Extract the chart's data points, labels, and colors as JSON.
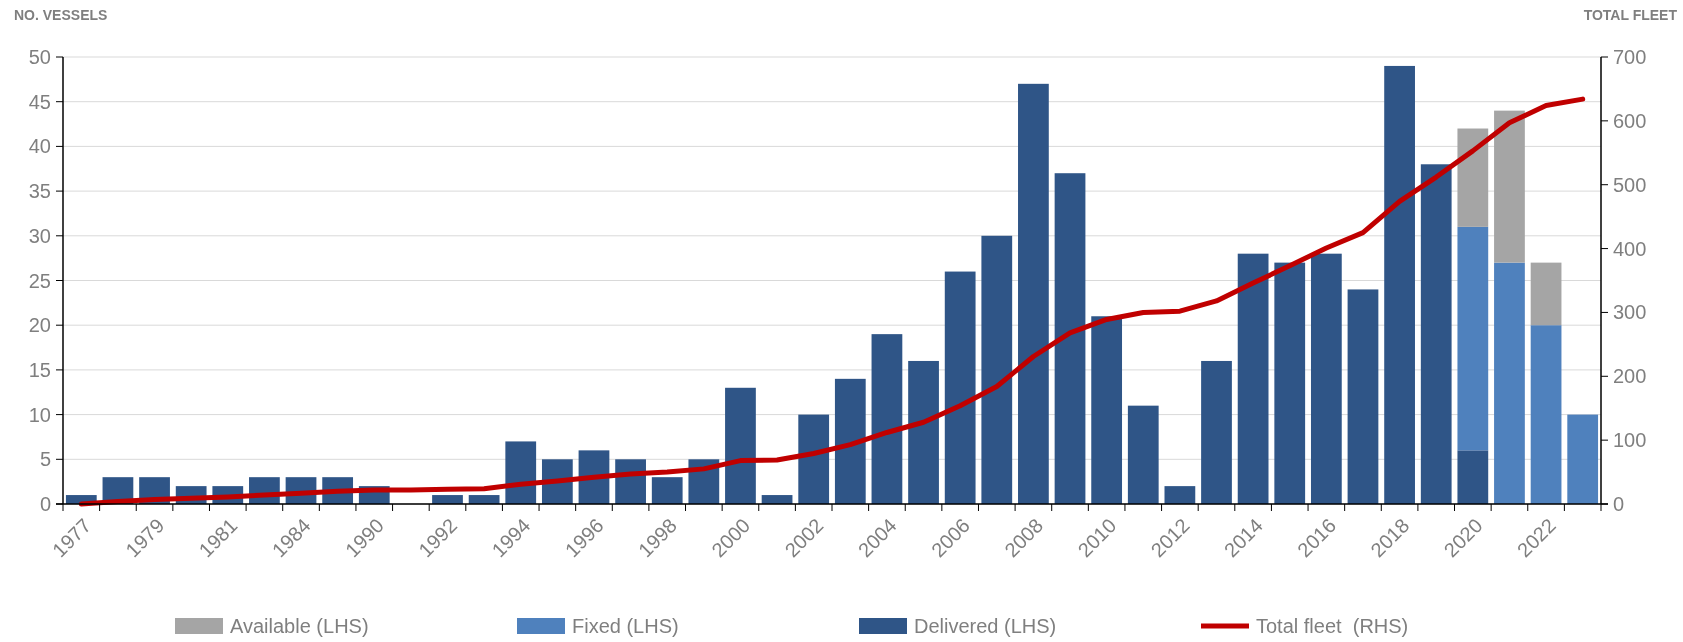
{
  "chart_data": {
    "type": "bar",
    "stacked": true,
    "ylabel": "NO. VESSELS",
    "y2label": "TOTAL FLEET",
    "categories": [
      "1977",
      null,
      "1979",
      null,
      "1981",
      null,
      "1984",
      null,
      "1990",
      null,
      "1992",
      null,
      "1994",
      null,
      "1996",
      null,
      "1998",
      null,
      "2000",
      null,
      "2002",
      null,
      "2004",
      null,
      "2006",
      null,
      "2008",
      null,
      "2010",
      null,
      "2012",
      null,
      "2014",
      null,
      "2016",
      null,
      "2018",
      null,
      "2020",
      null,
      "2022",
      null
    ],
    "series": [
      {
        "name": "Delivered (LHS)",
        "color": "#2f5587",
        "values": [
          1,
          3,
          3,
          2,
          2,
          3,
          3,
          3,
          2,
          null,
          1,
          1,
          7,
          5,
          6,
          5,
          3,
          5,
          13,
          1,
          10,
          14,
          19,
          16,
          26,
          30,
          47,
          37,
          21,
          11,
          2,
          16,
          28,
          27,
          28,
          24,
          49,
          38,
          6,
          null,
          null,
          null
        ]
      },
      {
        "name": "Fixed (LHS)",
        "color": "#4f81bd",
        "values": [
          null,
          null,
          null,
          null,
          null,
          null,
          null,
          null,
          null,
          null,
          null,
          null,
          null,
          null,
          null,
          null,
          null,
          null,
          null,
          null,
          null,
          null,
          null,
          null,
          null,
          null,
          null,
          null,
          null,
          null,
          null,
          null,
          null,
          null,
          null,
          null,
          null,
          null,
          25,
          27,
          20,
          10
        ]
      },
      {
        "name": "Available (LHS)",
        "color": "#a5a5a5",
        "values": [
          null,
          null,
          null,
          null,
          null,
          null,
          null,
          null,
          null,
          null,
          null,
          null,
          null,
          null,
          null,
          null,
          null,
          null,
          null,
          null,
          null,
          null,
          null,
          null,
          null,
          null,
          null,
          null,
          null,
          null,
          null,
          null,
          null,
          null,
          null,
          null,
          null,
          null,
          11,
          17,
          7,
          null
        ]
      },
      {
        "name": "Total fleet  (RHS)",
        "type": "line",
        "axis": "y2",
        "color": "#c00000",
        "values": [
          0,
          4,
          7,
          9,
          11,
          14,
          17,
          20,
          22,
          22,
          23,
          24,
          31,
          36,
          42,
          47,
          50,
          55,
          68,
          69,
          79,
          93,
          112,
          128,
          154,
          184,
          231,
          268,
          289,
          300,
          302,
          318,
          346,
          373,
          401,
          425,
          474,
          512,
          553,
          597,
          624,
          634
        ]
      }
    ],
    "ylim": [
      0,
      50
    ],
    "yticks": [
      0,
      5,
      10,
      15,
      20,
      25,
      30,
      35,
      40,
      45,
      50
    ],
    "y2lim": [
      0,
      700
    ],
    "y2ticks": [
      0,
      100,
      200,
      300,
      400,
      500,
      600,
      700
    ],
    "grid": "y",
    "legend": "bottom"
  }
}
